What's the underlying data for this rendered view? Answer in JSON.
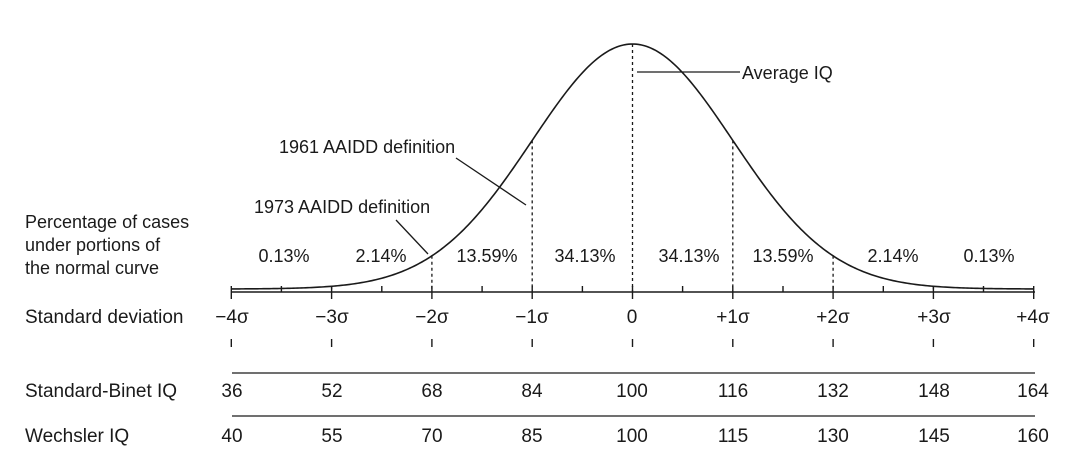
{
  "diagram": {
    "percentage_label": [
      "Percentage of cases",
      "under portions of",
      "the normal curve"
    ],
    "percentages": [
      "0.13%",
      "2.14%",
      "13.59%",
      "34.13%",
      "34.13%",
      "13.59%",
      "2.14%",
      "0.13%"
    ],
    "annotations": {
      "average": "Average IQ",
      "def_1961": "1961 AAIDD definition",
      "def_1973": "1973 AAIDD definition"
    },
    "sd_row": {
      "label": "Standard deviation",
      "ticks": [
        "−4σ",
        "−3σ",
        "−2σ",
        "−1σ",
        "0",
        "+1σ",
        "+2σ",
        "+3σ",
        "+4σ"
      ]
    },
    "binet_row": {
      "label": "Standard-Binet IQ",
      "ticks": [
        "36",
        "52",
        "68",
        "84",
        "100",
        "116",
        "132",
        "148",
        "164"
      ]
    },
    "wechsler_row": {
      "label": "Wechsler IQ",
      "ticks": [
        "40",
        "55",
        "70",
        "85",
        "100",
        "115",
        "130",
        "145",
        "160"
      ]
    }
  }
}
